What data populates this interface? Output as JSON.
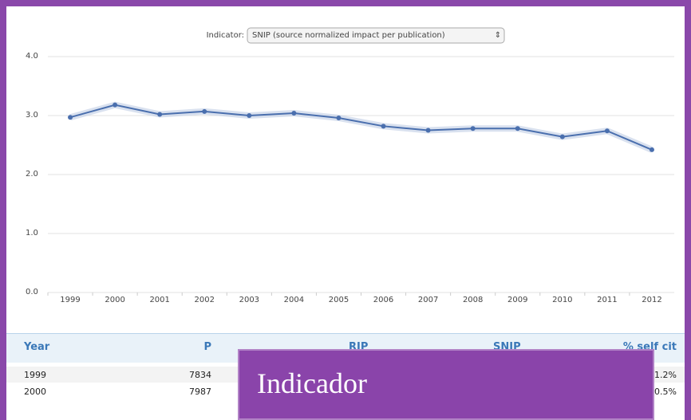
{
  "indicator_label": "Indicator:",
  "select_value": "SNIP (source normalized impact per publication)",
  "chart_data": {
    "type": "line",
    "categories": [
      "1999",
      "2000",
      "2001",
      "2002",
      "2003",
      "2004",
      "2005",
      "2006",
      "2007",
      "2008",
      "2009",
      "2010",
      "2011",
      "2012"
    ],
    "values": [
      2.97,
      3.18,
      3.02,
      3.07,
      3.0,
      3.04,
      2.96,
      2.82,
      2.75,
      2.78,
      2.78,
      2.64,
      2.74,
      2.42
    ],
    "color": "#4a6fae",
    "ylim": [
      0,
      4
    ],
    "yticks": [
      {
        "value": 0,
        "label": "0.0"
      },
      {
        "value": 1,
        "label": "1.0"
      },
      {
        "value": 2,
        "label": "2.0"
      },
      {
        "value": 3,
        "label": "3.0"
      },
      {
        "value": 4,
        "label": "4.0"
      }
    ],
    "grid": true
  },
  "table": {
    "headers": [
      "Year",
      "P",
      "RIP",
      "SNIP",
      "% self cit"
    ],
    "rows": [
      [
        "1999",
        "7834",
        "1.2%"
      ],
      [
        "2000",
        "7987",
        "0.5%"
      ]
    ]
  },
  "overlay": {
    "title": "Indicador"
  }
}
